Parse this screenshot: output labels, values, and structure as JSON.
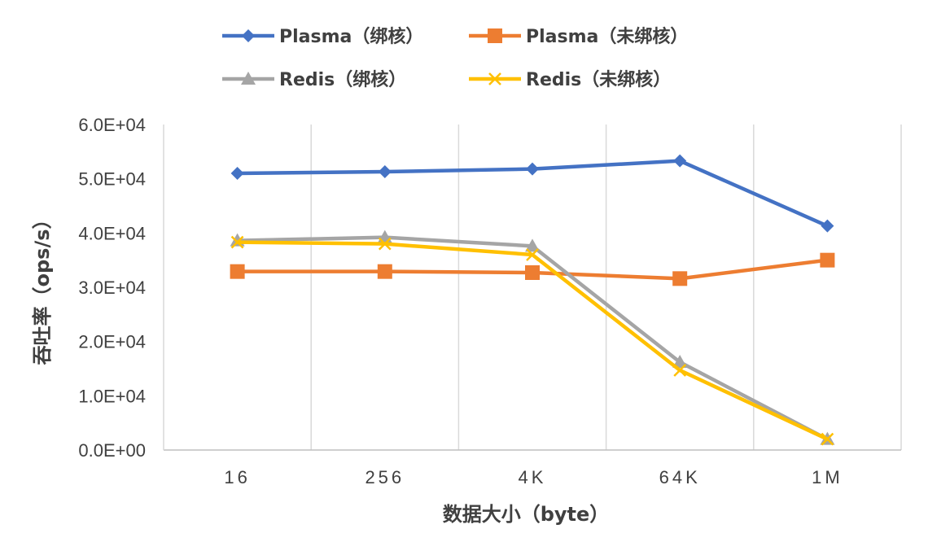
{
  "chart_data": {
    "type": "line",
    "categories": [
      "16",
      "256",
      "4K",
      "64K",
      "1M"
    ],
    "series": [
      {
        "name": "Plasma（绑核）",
        "color": "#4472C4",
        "marker": "diamond",
        "values": [
          51000,
          51300,
          51800,
          53300,
          41300
        ]
      },
      {
        "name": "Plasma（未绑核）",
        "color": "#ED7D31",
        "marker": "square",
        "values": [
          32900,
          32900,
          32700,
          31600,
          35000
        ]
      },
      {
        "name": "Redis（绑核）",
        "color": "#A5A5A5",
        "marker": "triangle",
        "values": [
          38600,
          39200,
          37600,
          16200,
          2000
        ]
      },
      {
        "name": "Redis（未绑核）",
        "color": "#FFC000",
        "marker": "x",
        "values": [
          38300,
          38000,
          36000,
          14700,
          2000
        ]
      }
    ],
    "xlabel": "数据大小（byte）",
    "ylabel": "吞吐率（ops/s）",
    "ylim": [
      0,
      60000
    ],
    "ytick_labels": [
      "0.0E+00",
      "1.0E+04",
      "2.0E+04",
      "3.0E+04",
      "4.0E+04",
      "5.0E+04",
      "6.0E+04"
    ],
    "legend_position": "top",
    "grid": "vertical"
  }
}
